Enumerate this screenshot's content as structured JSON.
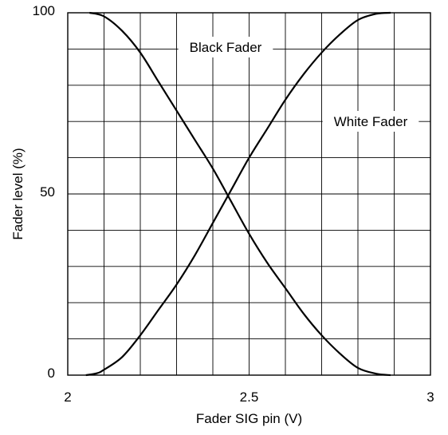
{
  "chart_data": {
    "type": "line",
    "xlabel": "Fader SIG pin (V)",
    "ylabel": "Fader level (%)",
    "xlim": [
      2,
      3
    ],
    "ylim": [
      0,
      100
    ],
    "x_ticks": [
      {
        "value": 2,
        "label": "2"
      },
      {
        "value": 2.5,
        "label": "2.5"
      },
      {
        "value": 3,
        "label": "3"
      }
    ],
    "y_ticks": [
      {
        "value": 0,
        "label": "0"
      },
      {
        "value": 50,
        "label": "50"
      },
      {
        "value": 100,
        "label": "100"
      }
    ],
    "x_grid_step": 0.1,
    "y_grid_step": 10,
    "grid": true,
    "series": [
      {
        "name": "Black Fader",
        "x": [
          2.06,
          2.1,
          2.15,
          2.2,
          2.25,
          2.3,
          2.35,
          2.4,
          2.45,
          2.5,
          2.55,
          2.6,
          2.65,
          2.7,
          2.75,
          2.8,
          2.85,
          2.89
        ],
        "y": [
          100,
          99,
          95,
          89,
          81,
          73,
          65,
          57,
          48,
          39,
          31,
          24,
          17,
          11,
          6,
          2,
          0.4,
          0
        ]
      },
      {
        "name": "White Fader",
        "x": [
          2.05,
          2.08,
          2.1,
          2.15,
          2.2,
          2.25,
          2.3,
          2.35,
          2.4,
          2.45,
          2.5,
          2.55,
          2.6,
          2.65,
          2.7,
          2.75,
          2.8,
          2.85,
          2.89
        ],
        "y": [
          0,
          0.5,
          1.5,
          5,
          11,
          18,
          25,
          33,
          42,
          51,
          60,
          68,
          76,
          83,
          89,
          94,
          98,
          99.7,
          100
        ]
      }
    ],
    "colors": {
      "line": "#000000",
      "grid": "#000000",
      "background": "#ffffff"
    }
  }
}
